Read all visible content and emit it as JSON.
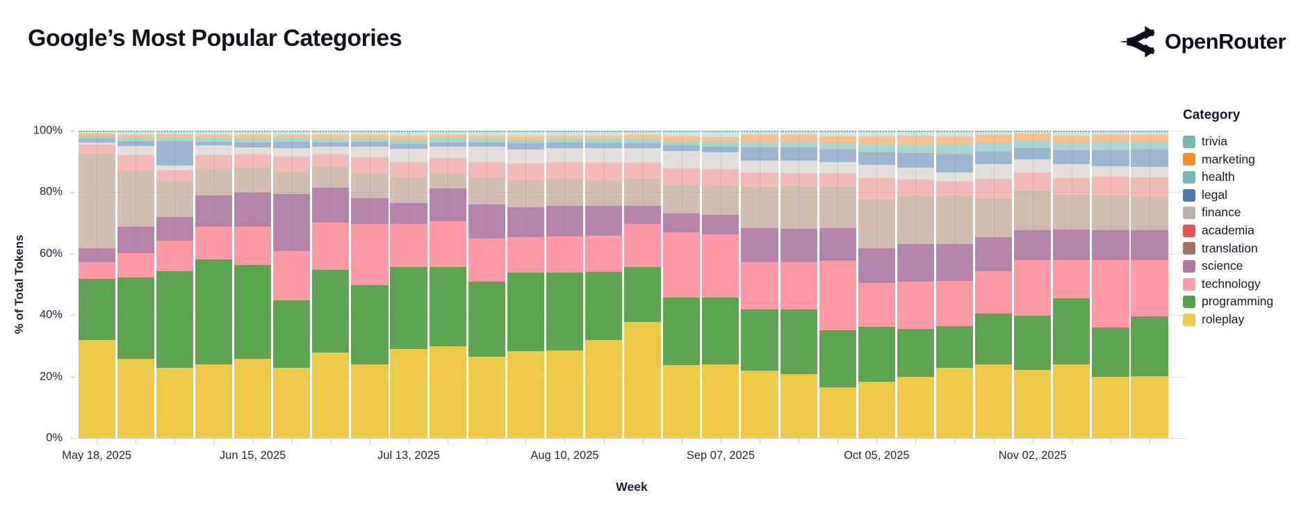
{
  "header": {
    "title": "Google’s Most Popular Categories",
    "brand": "OpenRouter"
  },
  "chart_data": {
    "type": "bar",
    "stacked": true,
    "title": "Google’s Most Popular Categories",
    "xlabel": "Week",
    "ylabel": "% of Total Tokens",
    "ylim": [
      0,
      100
    ],
    "grid": true,
    "legend_position": "right",
    "legend_title": "Category",
    "y_ticks": [
      {
        "value": 0,
        "label": "0%"
      },
      {
        "value": 20,
        "label": "20%"
      },
      {
        "value": 40,
        "label": "40%"
      },
      {
        "value": 60,
        "label": "60%"
      },
      {
        "value": 80,
        "label": "80%"
      },
      {
        "value": 100,
        "label": "100%"
      }
    ],
    "categories": [
      "May 18, 2025",
      "May 25, 2025",
      "Jun 01, 2025",
      "Jun 08, 2025",
      "Jun 15, 2025",
      "Jun 22, 2025",
      "Jun 29, 2025",
      "Jul 06, 2025",
      "Jul 13, 2025",
      "Jul 20, 2025",
      "Jul 27, 2025",
      "Aug 03, 2025",
      "Aug 10, 2025",
      "Aug 17, 2025",
      "Aug 24, 2025",
      "Aug 31, 2025",
      "Sep 07, 2025",
      "Sep 14, 2025",
      "Sep 21, 2025",
      "Sep 28, 2025",
      "Oct 05, 2025",
      "Oct 12, 2025",
      "Oct 19, 2025",
      "Oct 26, 2025",
      "Nov 02, 2025",
      "Nov 09, 2025",
      "Nov 16, 2025",
      "Nov 23, 2025"
    ],
    "x_tick_indices": [
      0,
      4,
      8,
      12,
      16,
      20,
      24
    ],
    "series": [
      {
        "name": "trivia",
        "legend_color": "#76b7b2",
        "fill": "rgba(118,183,178,0.35)",
        "pattern": false,
        "dotted_top": true,
        "values": [
          0.4,
          0.8,
          0.7,
          0.9,
          1.0,
          0.9,
          0.9,
          0.9,
          1.1,
          0.8,
          1.1,
          1.3,
          1.1,
          1.1,
          1.0,
          1.4,
          1.5,
          1.0,
          1.0,
          1.4,
          1.4,
          1.2,
          1.3,
          1.0,
          0.5,
          1.2,
          0.9,
          0.8
        ]
      },
      {
        "name": "marketing",
        "legend_color": "#f28e2b",
        "fill": "rgba(242,142,43,0.55)",
        "pattern": false,
        "dotted_top": false,
        "values": [
          0.8,
          1.0,
          1.1,
          1.0,
          1.1,
          1.0,
          1.4,
          1.1,
          1.4,
          1.1,
          1.1,
          1.2,
          1.1,
          1.2,
          1.2,
          1.5,
          1.6,
          2.2,
          2.2,
          2.1,
          2.4,
          2.8,
          2.9,
          2.5,
          2.1,
          2.2,
          2.3,
          2.2
        ]
      },
      {
        "name": "health",
        "legend_color": "#76b7b2",
        "fill": "rgba(118,183,178,0.62)",
        "pattern": false,
        "dotted_top": false,
        "values": [
          0.8,
          1.2,
          1.2,
          1.2,
          1.2,
          1.3,
          1.2,
          1.2,
          1.3,
          1.4,
          1.3,
          1.2,
          1.3,
          1.4,
          1.5,
          1.5,
          1.6,
          1.8,
          1.8,
          2.2,
          2.8,
          2.9,
          3.0,
          2.9,
          2.6,
          2.6,
          2.6,
          2.6
        ]
      },
      {
        "name": "legal",
        "legend_color": "#4e79a7",
        "fill": "rgba(78,121,167,0.55)",
        "pattern": true,
        "dotted_top": false,
        "values": [
          1.5,
          1.5,
          7.8,
          1.3,
          1.6,
          2.0,
          1.3,
          1.5,
          1.7,
          1.4,
          1.3,
          2.0,
          1.8,
          1.6,
          1.5,
          1.7,
          1.8,
          4.3,
          4.3,
          4.1,
          4.0,
          4.8,
          5.9,
          4.1,
          3.6,
          4.5,
          5.3,
          5.7
        ]
      },
      {
        "name": "finance",
        "legend_color": "#bab0ac",
        "fill": "rgba(186,176,172,0.42)",
        "pattern": true,
        "dotted_top": false,
        "values": [
          0.5,
          3.0,
          1.6,
          3.2,
          2.4,
          2.8,
          2.5,
          3.5,
          4.2,
          3.8,
          5.0,
          4.5,
          4.5,
          4.8,
          4.8,
          5.8,
          5.5,
          3.8,
          4.0,
          3.6,
          4.4,
          3.7,
          3.0,
          4.8,
          4.4,
          4.5,
          3.4,
          3.4
        ]
      },
      {
        "name": "academia",
        "legend_color": "#e15759",
        "fill": "rgba(225,87,89,0.42)",
        "pattern": false,
        "dotted_top": false,
        "values": [
          3.0,
          5.0,
          3.8,
          4.5,
          4.4,
          5.3,
          4.0,
          5.5,
          5.0,
          5.1,
          4.9,
          5.6,
          5.6,
          5.7,
          5.2,
          5.3,
          5.5,
          4.9,
          4.4,
          4.3,
          7.1,
          5.4,
          4.9,
          6.3,
          5.9,
          5.5,
          6.2,
          6.5
        ]
      },
      {
        "name": "translation",
        "legend_color": "#9d7660",
        "fill": "rgba(156,117,95,0.48)",
        "pattern": false,
        "dotted_top": false,
        "values": [
          31.0,
          18.5,
          11.6,
          8.7,
          8.0,
          6.9,
          6.9,
          8.0,
          8.6,
          4.9,
          9.0,
          8.8,
          8.8,
          8.4,
          8.8,
          9.4,
          9.5,
          13.3,
          13.8,
          13.7,
          15.8,
          15.7,
          15.7,
          12.7,
          13.0,
          11.5,
          11.3,
          10.8
        ]
      },
      {
        "name": "science",
        "legend_color": "#b07aa1",
        "fill": "rgba(176,122,161,0.92)",
        "pattern": false,
        "dotted_top": false,
        "values": [
          4.5,
          8.5,
          7.7,
          10.2,
          11.3,
          18.6,
          11.3,
          8.4,
          6.7,
          10.7,
          11.1,
          9.8,
          9.8,
          9.6,
          5.9,
          6.2,
          6.5,
          11.1,
          11.1,
          10.7,
          11.5,
          12.4,
          11.9,
          11.1,
          9.8,
          10.0,
          9.8,
          9.8
        ]
      },
      {
        "name": "technology",
        "legend_color": "#ff9da7",
        "fill": "rgba(255,148,160,0.95)",
        "pattern": false,
        "dotted_top": false,
        "values": [
          5.5,
          8.0,
          10.0,
          10.5,
          12.5,
          16.2,
          15.5,
          19.9,
          14.0,
          14.8,
          14.1,
          11.6,
          11.9,
          11.9,
          14.3,
          21.4,
          20.5,
          15.6,
          15.4,
          22.7,
          14.4,
          15.5,
          14.8,
          13.9,
          18.2,
          12.7,
          22.0,
          18.5
        ]
      },
      {
        "name": "programming",
        "legend_color": "#59a14f",
        "fill": "rgba(84,158,73,0.95)",
        "pattern": false,
        "dotted_top": false,
        "values": [
          20.0,
          26.5,
          31.5,
          34.5,
          30.5,
          22.0,
          27.0,
          26.0,
          27.0,
          26.0,
          24.6,
          25.5,
          25.5,
          22.3,
          17.8,
          22.0,
          22.0,
          20.0,
          21.0,
          18.5,
          17.8,
          15.5,
          13.8,
          16.6,
          17.6,
          21.5,
          16.2,
          19.4
        ]
      },
      {
        "name": "roleplay",
        "legend_color": "#eeca4f",
        "fill": "rgba(236,198,62,0.95)",
        "pattern": false,
        "dotted_top": false,
        "values": [
          32.0,
          26.0,
          23.0,
          24.0,
          26.0,
          23.0,
          28.0,
          24.0,
          29.0,
          30.0,
          26.5,
          28.5,
          28.6,
          32.0,
          38.0,
          23.8,
          24.0,
          22.0,
          21.0,
          16.6,
          18.5,
          20.1,
          22.9,
          24.1,
          22.3,
          24.3,
          20.0,
          20.3
        ]
      }
    ]
  }
}
